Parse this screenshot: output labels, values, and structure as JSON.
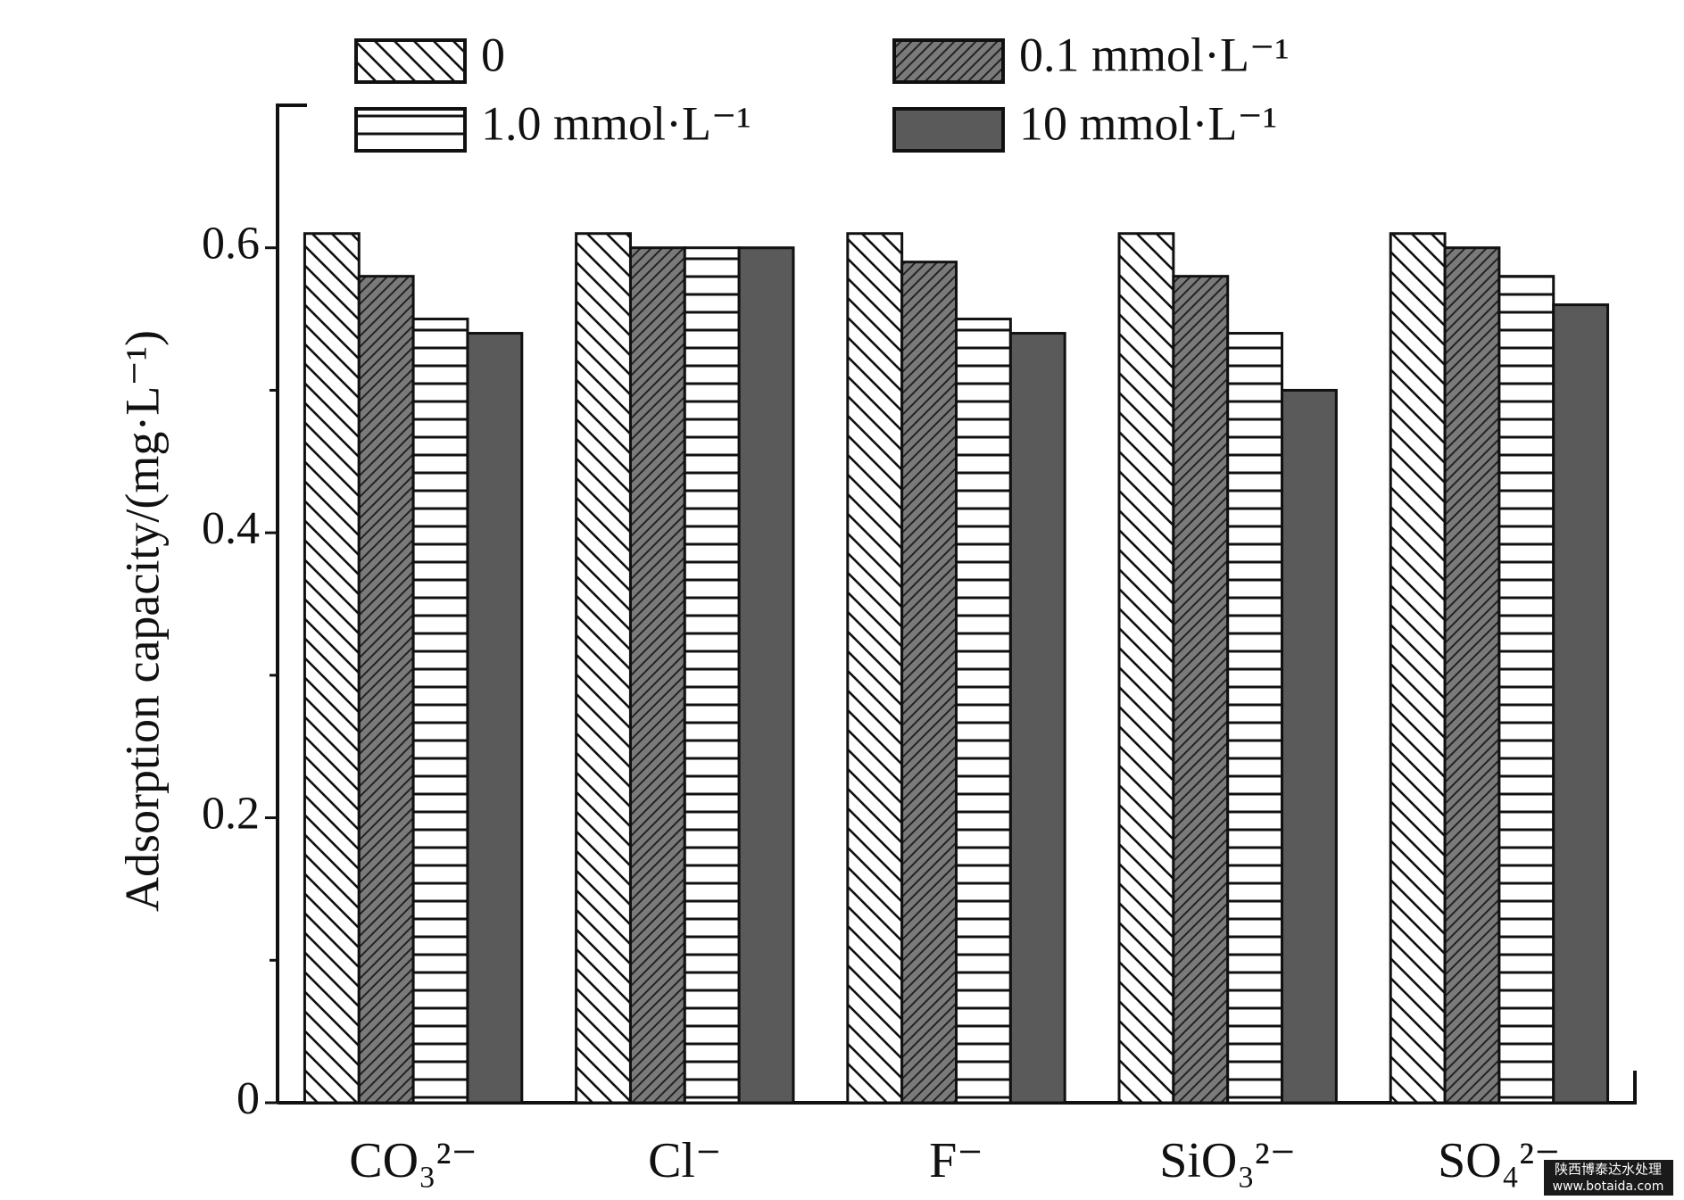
{
  "chart_data": {
    "type": "bar",
    "ylabel": "Adsorption capacity/(mg·L⁻¹)",
    "categories": [
      "CO₃²⁻",
      "Cl⁻",
      "F⁻",
      "SiO₃²⁻",
      "SO₄²⁻"
    ],
    "series": [
      {
        "name": "0",
        "color": "#ffffff",
        "pattern": "backslash",
        "values": [
          0.61,
          0.61,
          0.61,
          0.61,
          0.61
        ]
      },
      {
        "name": "0.1 mmol·L⁻¹",
        "color": "#7a7a7a",
        "pattern": "slash",
        "values": [
          0.58,
          0.6,
          0.59,
          0.58,
          0.6
        ]
      },
      {
        "name": "1.0 mmol·L⁻¹",
        "color": "#ffffff",
        "pattern": "horizontal",
        "values": [
          0.55,
          0.6,
          0.55,
          0.54,
          0.58
        ]
      },
      {
        "name": "10 mmol·L⁻¹",
        "color": "#5a5a5a",
        "pattern": "solid",
        "values": [
          0.54,
          0.6,
          0.54,
          0.5,
          0.56
        ]
      }
    ],
    "ylim": [
      0,
      0.7
    ],
    "yticks": [
      0,
      0.2,
      0.4,
      0.6
    ],
    "minor_yticks": [
      0.1,
      0.3,
      0.5
    ],
    "grid": false,
    "legend": "top",
    "watermark": [
      "陕西博泰达水处理",
      "www.botaida.com"
    ]
  }
}
